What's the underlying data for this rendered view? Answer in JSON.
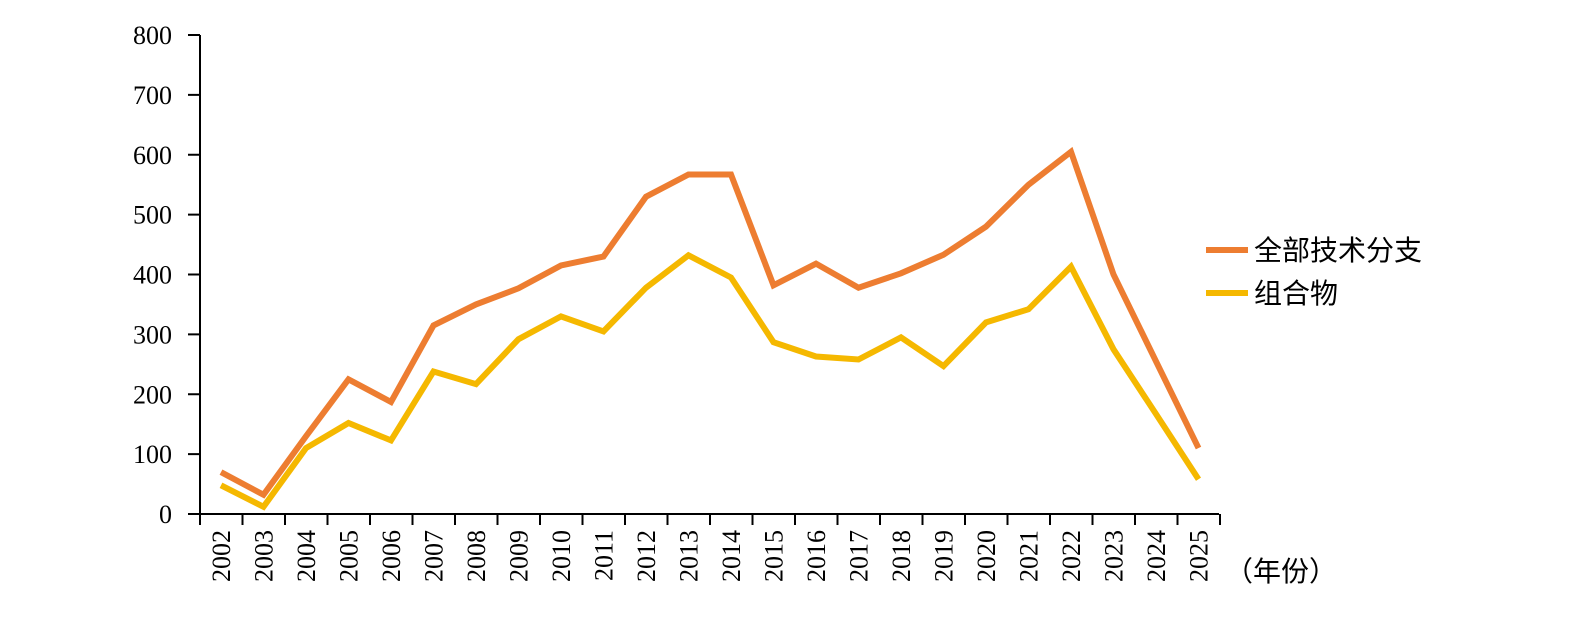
{
  "chart_data": {
    "type": "line",
    "categories": [
      "2002",
      "2003",
      "2004",
      "2005",
      "2006",
      "2007",
      "2008",
      "2009",
      "2010",
      "2011",
      "2012",
      "2013",
      "2014",
      "2015",
      "2016",
      "2017",
      "2018",
      "2019",
      "2020",
      "2021",
      "2022",
      "2023",
      "2024",
      "2025"
    ],
    "series": [
      {
        "name": "全部技术分支",
        "color": "#ED7D31",
        "values": [
          70,
          32,
          130,
          225,
          187,
          315,
          350,
          377,
          415,
          430,
          530,
          567,
          567,
          382,
          418,
          378,
          402,
          433,
          480,
          550,
          605,
          400,
          255,
          110
        ]
      },
      {
        "name": "组合物",
        "color": "#F5B800",
        "values": [
          48,
          12,
          110,
          152,
          123,
          238,
          217,
          292,
          330,
          305,
          378,
          432,
          395,
          287,
          263,
          258,
          295,
          247,
          320,
          342,
          413,
          275,
          167,
          58
        ]
      }
    ],
    "y_ticks": [
      "0",
      "100",
      "200",
      "300",
      "400",
      "500",
      "600",
      "700",
      "800"
    ],
    "ylim": [
      0,
      800
    ],
    "x_unit_label": "（年份）",
    "legend_position": "right",
    "grid": false
  }
}
